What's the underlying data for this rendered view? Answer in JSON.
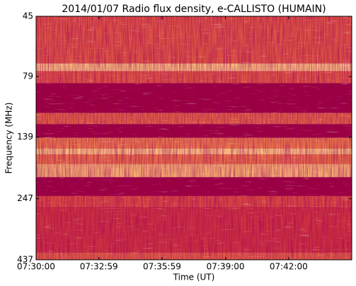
{
  "chart_data": {
    "type": "spectrogram",
    "title": "2014/01/07  Radio flux density, e-CALLISTO (HUMAIN)",
    "x_label": "Time (UT)",
    "y_label": "Frequency (MHz)",
    "xlim": [
      "07:30:00",
      "07:45:00"
    ],
    "xticks": [
      "07:30:00",
      "07:32:59",
      "07:35:59",
      "07:39:00",
      "07:42:00"
    ],
    "ylim": [
      45,
      437
    ],
    "yticks": [
      45,
      79,
      139,
      247,
      437
    ],
    "y_log": true,
    "y_inverted": true,
    "bands": [
      45,
      70,
      75,
      84,
      111,
      123,
      140,
      155,
      163,
      179,
      202,
      241,
      266,
      409,
      437
    ],
    "intensity": [
      0.45,
      0.85,
      0.45,
      0,
      0.5,
      0,
      0.6,
      0.85,
      0.55,
      0.8,
      0,
      0.4,
      0.3,
      0.5
    ],
    "colormap": [
      "#99003f",
      "#d2363f",
      "#f08a4b",
      "#fde7a5"
    ]
  }
}
